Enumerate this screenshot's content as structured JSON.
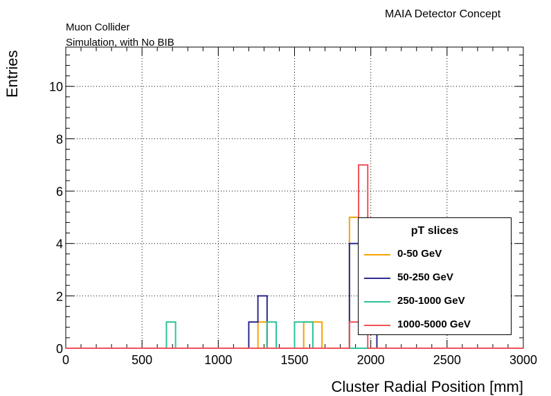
{
  "header": {
    "right_title": "MAIA Detector Concept",
    "left_title_1": "Muon Collider",
    "left_title_2": "Simulation, with No BIB"
  },
  "chart_data": {
    "type": "histogram",
    "xlabel": "Cluster Radial Position [mm]",
    "ylabel": "Entries",
    "xlim": [
      0,
      3000
    ],
    "ylim": [
      0,
      11.5
    ],
    "xticks": [
      0,
      500,
      1000,
      1500,
      2000,
      2500,
      3000
    ],
    "yticks": [
      0,
      2,
      4,
      6,
      8,
      10
    ],
    "grid": true,
    "bin_width": 60,
    "legend": {
      "title": "pT slices",
      "position": "bottom-right"
    },
    "series": [
      {
        "name": "0-50 GeV",
        "color": "#f5a300",
        "bins": [
          {
            "x0": 1260,
            "x1": 1320,
            "y": 1
          },
          {
            "x0": 1560,
            "x1": 1620,
            "y": 1
          },
          {
            "x0": 1620,
            "x1": 1680,
            "y": 1
          },
          {
            "x0": 1860,
            "x1": 1920,
            "y": 5
          },
          {
            "x0": 1920,
            "x1": 1980,
            "y": 2
          },
          {
            "x0": 1980,
            "x1": 2040,
            "y": 1
          }
        ]
      },
      {
        "name": "50-250 GeV",
        "color": "#2a2a8e",
        "bins": [
          {
            "x0": 1200,
            "x1": 1260,
            "y": 1
          },
          {
            "x0": 1260,
            "x1": 1320,
            "y": 2
          },
          {
            "x0": 1860,
            "x1": 1920,
            "y": 4
          },
          {
            "x0": 1920,
            "x1": 1980,
            "y": 2
          },
          {
            "x0": 1980,
            "x1": 2040,
            "y": 1
          }
        ]
      },
      {
        "name": "250-1000 GeV",
        "color": "#2ec29a",
        "bins": [
          {
            "x0": 660,
            "x1": 720,
            "y": 1
          },
          {
            "x0": 1320,
            "x1": 1380,
            "y": 1
          },
          {
            "x0": 1500,
            "x1": 1560,
            "y": 1
          },
          {
            "x0": 1560,
            "x1": 1620,
            "y": 1
          }
        ]
      },
      {
        "name": "1000-5000 GeV",
        "color": "#f0505a",
        "bins": [
          {
            "x0": 1860,
            "x1": 1920,
            "y": 1
          },
          {
            "x0": 1920,
            "x1": 1980,
            "y": 7
          }
        ]
      }
    ]
  }
}
